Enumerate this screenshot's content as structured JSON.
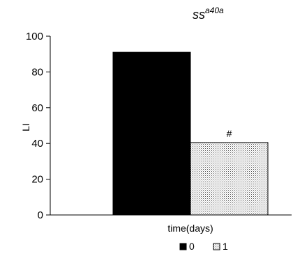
{
  "chart_data": {
    "type": "bar",
    "title": {
      "main": "ss",
      "superscript": "a40a"
    },
    "xlabel": "time(days)",
    "ylabel": "LI",
    "ylim": [
      0,
      100
    ],
    "yticks": [
      "0",
      "20",
      "40",
      "60",
      "80",
      "100"
    ],
    "grid": false,
    "legend_position": "bottom",
    "series": [
      {
        "name": "0",
        "value": 91,
        "color": "#000000",
        "pattern": "solid"
      },
      {
        "name": "1",
        "value": 40.5,
        "color": "#ffffff",
        "pattern": "stipple",
        "annotation": "#"
      }
    ]
  }
}
